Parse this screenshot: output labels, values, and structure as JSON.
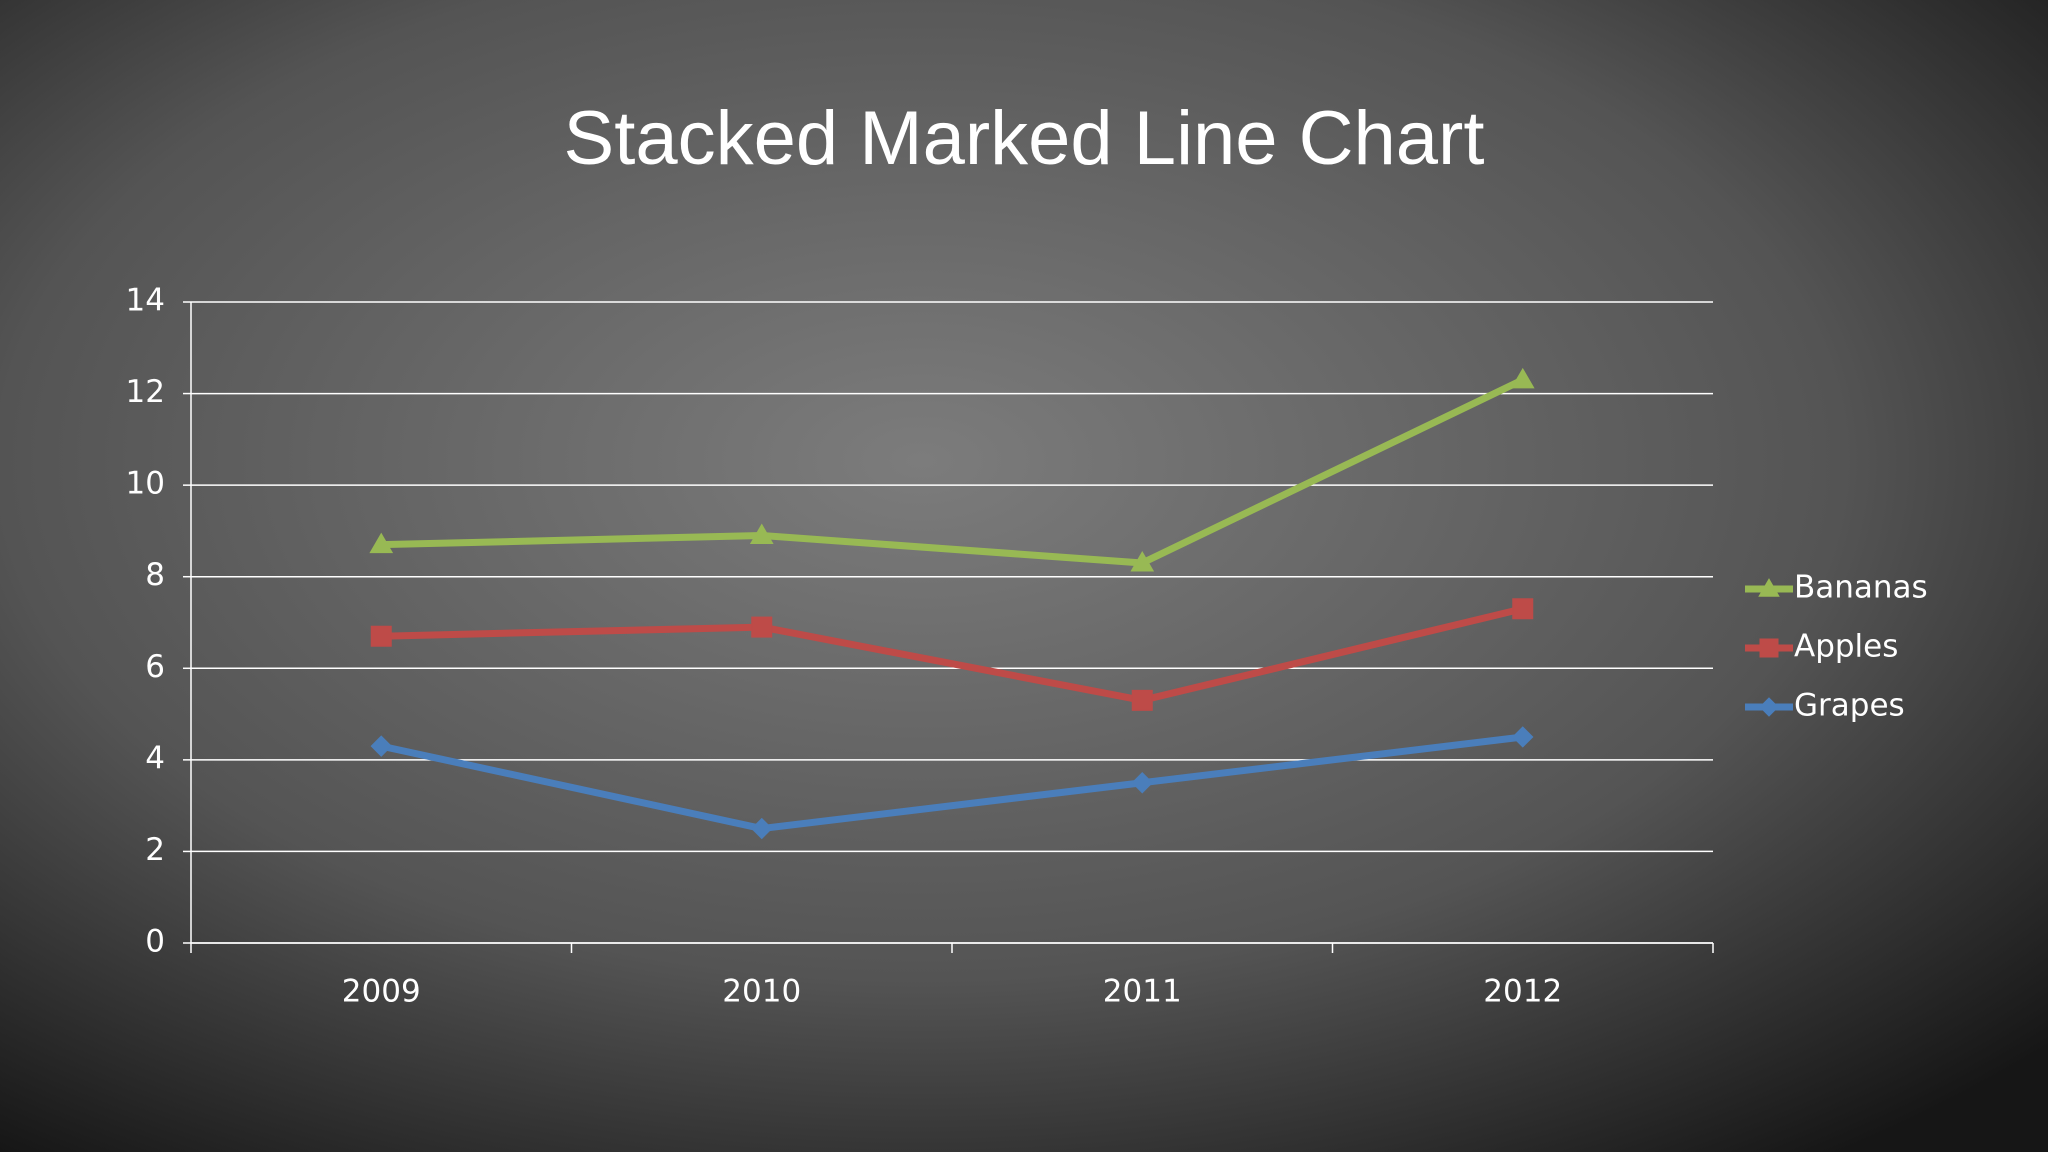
{
  "chart_data": {
    "type": "line",
    "stacked": true,
    "title": "Stacked Marked Line Chart",
    "categories": [
      "2009",
      "2010",
      "2011",
      "2012"
    ],
    "series": [
      {
        "name": "Grapes",
        "color": "#4a7ebb",
        "marker": "diamond",
        "values": [
          4.3,
          2.5,
          3.5,
          4.5
        ]
      },
      {
        "name": "Apples",
        "color": "#be4b48",
        "marker": "square",
        "values": [
          2.4,
          4.4,
          1.8,
          2.8
        ]
      },
      {
        "name": "Bananas",
        "color": "#98b954",
        "marker": "triangle",
        "values": [
          2.0,
          2.0,
          3.0,
          5.0
        ]
      }
    ],
    "ylim": [
      0,
      14
    ],
    "yticks": [
      0,
      2,
      4,
      6,
      8,
      10,
      12,
      14
    ],
    "grid": true,
    "legend": "right"
  }
}
